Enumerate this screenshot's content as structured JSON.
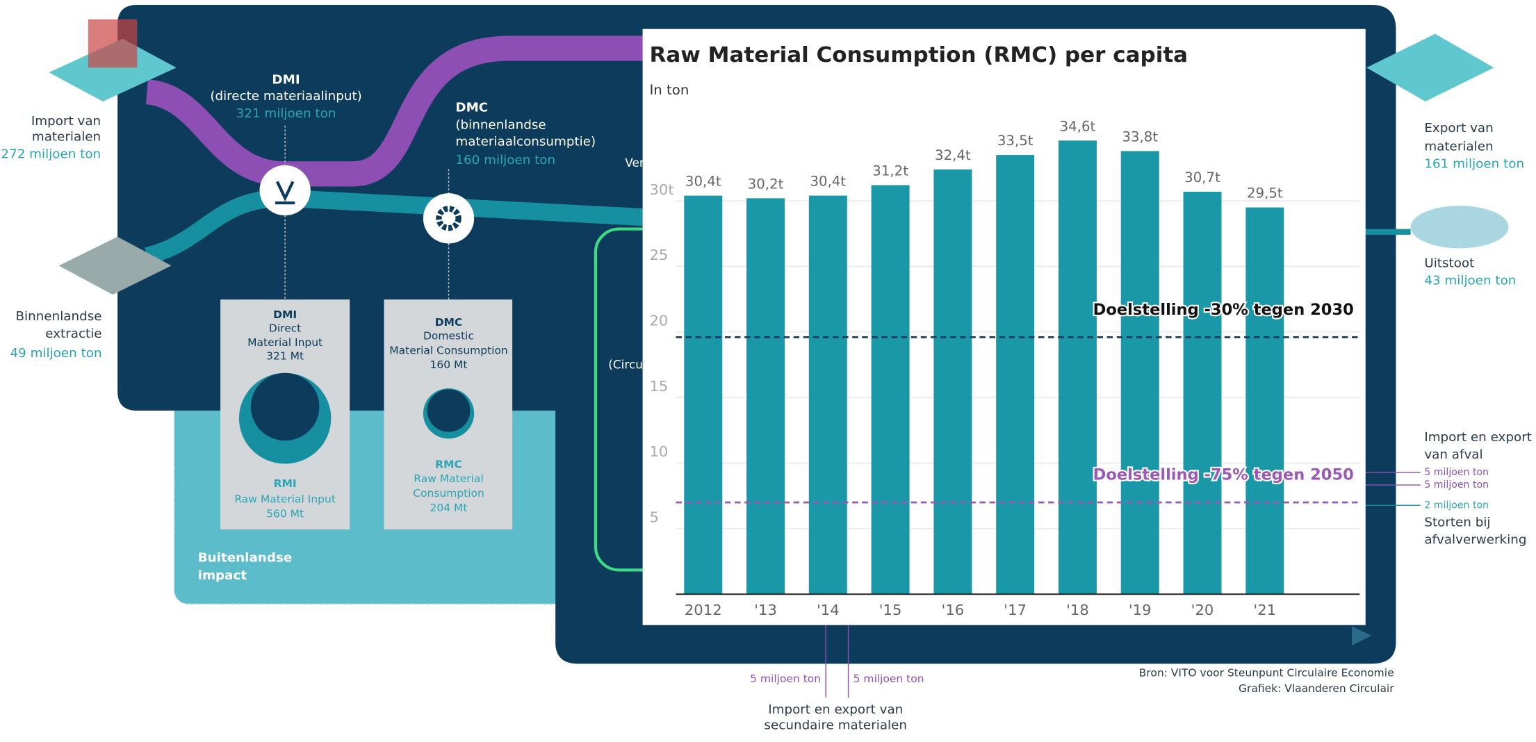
{
  "chart_data": {
    "type": "bar",
    "title": "Raw Material Consumption (RMC) per capita",
    "subtitle": "In ton",
    "categories": [
      "2012",
      "'13",
      "'14",
      "'15",
      "'16",
      "'17",
      "'18",
      "'19",
      "'20",
      "'21"
    ],
    "values": [
      30.4,
      30.2,
      30.4,
      31.2,
      32.4,
      33.5,
      34.6,
      33.8,
      30.7,
      29.5
    ],
    "value_labels": [
      "30,4t",
      "30,2t",
      "30,4t",
      "31,2t",
      "32,4t",
      "33,5t",
      "34,6t",
      "33,8t",
      "30,7t",
      "29,5t"
    ],
    "color": "#1b98a8",
    "ylim": [
      0,
      36
    ],
    "yticks": [
      5,
      10,
      15,
      20,
      25,
      {
        "value": 30,
        "label": "30t"
      }
    ],
    "grid": true,
    "reference_lines": [
      {
        "value": 19.6,
        "label": "Doelstelling -30% tegen 2030",
        "color": "#1f3a5f",
        "label_color": "#111111"
      },
      {
        "value": 7.0,
        "label": "Doelstelling -75% tegen 2050",
        "color": "#9b59b6",
        "label_color": "#9b59b6"
      }
    ]
  },
  "infographic": {
    "labels": [
      "Import van",
      "materialen",
      "272 miljoen ton",
      "DMI",
      "(directe materiaalinput)",
      "321 miljoen ton",
      "DMC",
      "(binnenlandse",
      "materiaalconsumptie)",
      "160 miljoen ton",
      "Ver",
      "Binnenlandse",
      "extractie",
      "49 miljoen ton",
      "DMI",
      "Direct",
      "Material Input",
      "321 Mt",
      "RMI",
      "Raw Material Input",
      "560 Mt",
      "DMC",
      "Domestic",
      "Material Consumption",
      "160 Mt",
      "RMC",
      "Raw Material",
      "Consumption",
      "204 Mt",
      "Buitenlandse",
      "impact",
      "(Circu",
      "Export van",
      "materialen",
      "161 miljoen ton",
      "Uitstoot",
      "43 miljoen ton",
      "Import en export",
      "van afval",
      "5 miljoen ton",
      "5 miljoen ton",
      "2 miljoen ton",
      "Storten bij",
      "afvalverwerking",
      "5 miljoen ton",
      "5 miljoen ton",
      "Import en export van",
      "secundaire materialen",
      "Bron: VITO voor Steunpunt Circulaire Economie",
      "Grafiek: Vlaanderen Circulair"
    ]
  }
}
